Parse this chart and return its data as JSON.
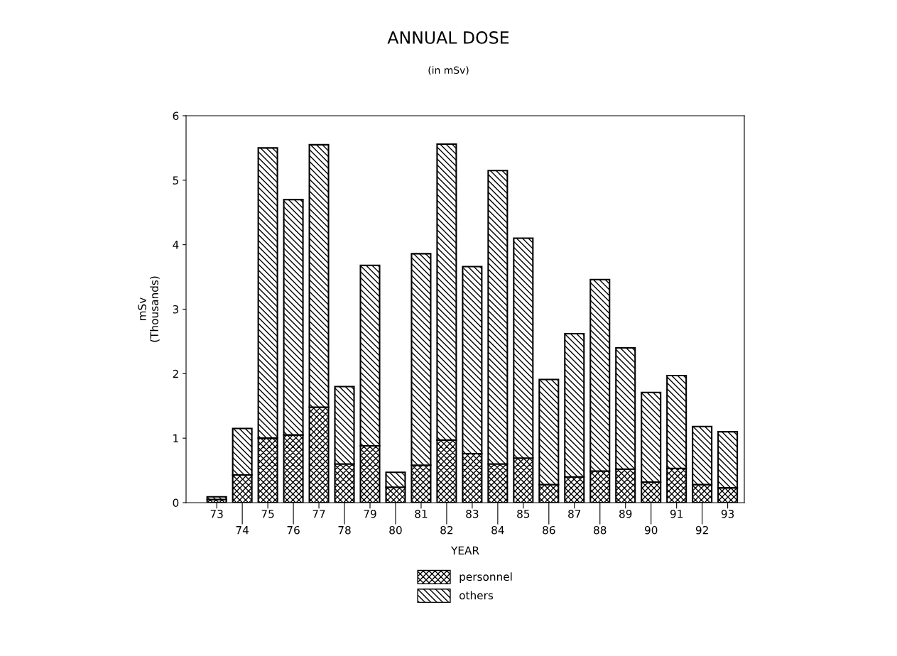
{
  "chart_data": {
    "type": "bar",
    "title": "ANNUAL DOSE",
    "subtitle": "(in mSv)",
    "xlabel": "YEAR",
    "ylabel": "mSv\n(Thousands)",
    "categories": [
      "73",
      "74",
      "75",
      "76",
      "77",
      "78",
      "79",
      "80",
      "81",
      "82",
      "83",
      "84",
      "85",
      "86",
      "87",
      "88",
      "89",
      "90",
      "91",
      "92",
      "93"
    ],
    "stacked": true,
    "series": [
      {
        "name": "personnel",
        "color": "#000000",
        "values": [
          0.05,
          0.43,
          1.0,
          1.05,
          1.48,
          0.6,
          0.88,
          0.24,
          0.58,
          0.97,
          0.76,
          0.6,
          0.69,
          0.28,
          0.4,
          0.49,
          0.52,
          0.32,
          0.53,
          0.28,
          0.23
        ]
      },
      {
        "name": "others",
        "color": "#000000",
        "values": [
          0.04,
          0.72,
          4.5,
          3.65,
          4.07,
          1.2,
          2.8,
          0.23,
          3.28,
          4.59,
          2.9,
          4.55,
          3.41,
          1.63,
          2.22,
          2.97,
          1.88,
          1.39,
          1.44,
          0.9,
          0.87
        ]
      }
    ],
    "ylim": [
      0,
      6
    ],
    "yticks": [
      0,
      1,
      2,
      3,
      4,
      5,
      6
    ],
    "grid": false,
    "legend": "bottom"
  }
}
